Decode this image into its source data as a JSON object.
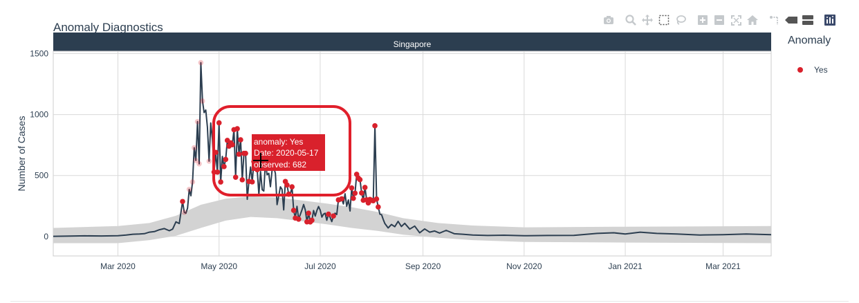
{
  "chart_data": {
    "type": "line",
    "title": "Anomaly Diagnostics",
    "facet_label": "Singapore",
    "ylabel": "Number of Cases",
    "xlabel": "",
    "x_range": [
      "2020-01-22",
      "2021-03-30"
    ],
    "ylim": [
      -160,
      1520
    ],
    "y_ticks": [
      0,
      500,
      1000,
      1500
    ],
    "x_ticks": [
      {
        "date": "2020-03-01",
        "label": "Mar 2020"
      },
      {
        "date": "2020-05-01",
        "label": "May 2020"
      },
      {
        "date": "2020-07-01",
        "label": "Jul 2020"
      },
      {
        "date": "2020-09-01",
        "label": "Sep 2020"
      },
      {
        "date": "2020-11-01",
        "label": "Nov 2020"
      },
      {
        "date": "2021-01-01",
        "label": "Jan 2021"
      },
      {
        "date": "2021-03-01",
        "label": "Mar 2021"
      }
    ],
    "grid": true,
    "series": [
      {
        "kind": "observed-line",
        "color": "#2c3e50",
        "points": [
          [
            "2020-01-22",
            1
          ],
          [
            "2020-02-01",
            3
          ],
          [
            "2020-02-10",
            5
          ],
          [
            "2020-02-20",
            4
          ],
          [
            "2020-03-01",
            6
          ],
          [
            "2020-03-06",
            12
          ],
          [
            "2020-03-10",
            18
          ],
          [
            "2020-03-14",
            20
          ],
          [
            "2020-03-17",
            23
          ],
          [
            "2020-03-20",
            35
          ],
          [
            "2020-03-23",
            40
          ],
          [
            "2020-03-26",
            55
          ],
          [
            "2020-03-29",
            65
          ],
          [
            "2020-04-01",
            47
          ],
          [
            "2020-04-03",
            60
          ],
          [
            "2020-04-05",
            120
          ],
          [
            "2020-04-07",
            106
          ],
          [
            "2020-04-09",
            287
          ],
          [
            "2020-04-10",
            198
          ],
          [
            "2020-04-11",
            191
          ],
          [
            "2020-04-12",
            233
          ],
          [
            "2020-04-13",
            386
          ],
          [
            "2020-04-14",
            334
          ],
          [
            "2020-04-15",
            447
          ],
          [
            "2020-04-16",
            728
          ],
          [
            "2020-04-17",
            623
          ],
          [
            "2020-04-18",
            942
          ],
          [
            "2020-04-19",
            596
          ],
          [
            "2020-04-20",
            1426
          ],
          [
            "2020-04-21",
            1111
          ],
          [
            "2020-04-22",
            1016
          ],
          [
            "2020-04-23",
            1037
          ],
          [
            "2020-04-24",
            897
          ],
          [
            "2020-04-25",
            618
          ],
          [
            "2020-04-26",
            931
          ],
          [
            "2020-04-27",
            799
          ],
          [
            "2020-04-28",
            528
          ],
          [
            "2020-04-29",
            690
          ],
          [
            "2020-04-30",
            528
          ],
          [
            "2020-05-01",
            932
          ],
          [
            "2020-05-02",
            447
          ],
          [
            "2020-05-03",
            657
          ],
          [
            "2020-05-04",
            573
          ],
          [
            "2020-05-05",
            632
          ],
          [
            "2020-05-06",
            788
          ],
          [
            "2020-05-07",
            741
          ],
          [
            "2020-05-08",
            768
          ],
          [
            "2020-05-09",
            753
          ],
          [
            "2020-05-10",
            876
          ],
          [
            "2020-05-11",
            486
          ],
          [
            "2020-05-12",
            884
          ],
          [
            "2020-05-13",
            675
          ],
          [
            "2020-05-14",
            793
          ],
          [
            "2020-05-15",
            465
          ],
          [
            "2020-05-16",
            682
          ],
          [
            "2020-05-17",
            682
          ],
          [
            "2020-05-18",
            305
          ],
          [
            "2020-05-19",
            451
          ],
          [
            "2020-05-20",
            570
          ],
          [
            "2020-05-21",
            448
          ],
          [
            "2020-05-22",
            614
          ],
          [
            "2020-05-23",
            642
          ],
          [
            "2020-05-24",
            548
          ],
          [
            "2020-05-25",
            344
          ],
          [
            "2020-05-26",
            533
          ],
          [
            "2020-05-27",
            383
          ],
          [
            "2020-05-28",
            373
          ],
          [
            "2020-05-29",
            611
          ],
          [
            "2020-05-30",
            506
          ],
          [
            "2020-05-31",
            518
          ],
          [
            "2020-06-01",
            408
          ],
          [
            "2020-06-02",
            544
          ],
          [
            "2020-06-03",
            569
          ],
          [
            "2020-06-04",
            517
          ],
          [
            "2020-06-05",
            261
          ],
          [
            "2020-06-06",
            331
          ],
          [
            "2020-06-07",
            407
          ],
          [
            "2020-06-08",
            386
          ],
          [
            "2020-06-09",
            218
          ],
          [
            "2020-06-10",
            451
          ],
          [
            "2020-06-11",
            422
          ],
          [
            "2020-06-12",
            347
          ],
          [
            "2020-06-13",
            347
          ],
          [
            "2020-06-14",
            407
          ],
          [
            "2020-06-15",
            214
          ],
          [
            "2020-06-16",
            151
          ],
          [
            "2020-06-17",
            247
          ],
          [
            "2020-06-18",
            142
          ],
          [
            "2020-06-19",
            180
          ],
          [
            "2020-06-20",
            218
          ],
          [
            "2020-06-21",
            262
          ],
          [
            "2020-06-22",
            218
          ],
          [
            "2020-06-23",
            120
          ],
          [
            "2020-06-24",
            191
          ],
          [
            "2020-06-25",
            119
          ],
          [
            "2020-06-26",
            133
          ],
          [
            "2020-06-27",
            213
          ],
          [
            "2020-06-28",
            167
          ],
          [
            "2020-06-29",
            213
          ],
          [
            "2020-06-30",
            246
          ],
          [
            "2020-07-01",
            215
          ],
          [
            "2020-07-02",
            159
          ],
          [
            "2020-07-03",
            183
          ],
          [
            "2020-07-04",
            191
          ],
          [
            "2020-07-05",
            133
          ],
          [
            "2020-07-06",
            183
          ],
          [
            "2020-07-07",
            157
          ],
          [
            "2020-07-08",
            122
          ],
          [
            "2020-07-09",
            168
          ],
          [
            "2020-07-10",
            191
          ],
          [
            "2020-07-11",
            180
          ],
          [
            "2020-07-12",
            300
          ],
          [
            "2020-07-13",
            288
          ],
          [
            "2020-07-14",
            309
          ],
          [
            "2020-07-15",
            267
          ],
          [
            "2020-07-16",
            350
          ],
          [
            "2020-07-17",
            247
          ],
          [
            "2020-07-18",
            300
          ],
          [
            "2020-07-19",
            209
          ],
          [
            "2020-07-20",
            398
          ],
          [
            "2020-07-21",
            313
          ],
          [
            "2020-07-22",
            355
          ],
          [
            "2020-07-23",
            510
          ],
          [
            "2020-07-24",
            479
          ],
          [
            "2020-07-25",
            466
          ],
          [
            "2020-07-26",
            357
          ],
          [
            "2020-07-27",
            297
          ],
          [
            "2020-07-28",
            402
          ],
          [
            "2020-07-29",
            301
          ],
          [
            "2020-07-30",
            275
          ],
          [
            "2020-07-31",
            304
          ],
          [
            "2020-08-01",
            296
          ],
          [
            "2020-08-02",
            293
          ],
          [
            "2020-08-03",
            908
          ],
          [
            "2020-08-04",
            307
          ],
          [
            "2020-08-05",
            242
          ],
          [
            "2020-08-06",
            182
          ],
          [
            "2020-08-07",
            179
          ],
          [
            "2020-08-08",
            141
          ],
          [
            "2020-08-09",
            107
          ],
          [
            "2020-08-11",
            70
          ],
          [
            "2020-08-13",
            98
          ],
          [
            "2020-08-15",
            80
          ],
          [
            "2020-08-17",
            124
          ],
          [
            "2020-08-19",
            82
          ],
          [
            "2020-08-21",
            108
          ],
          [
            "2020-08-24",
            60
          ],
          [
            "2020-08-27",
            85
          ],
          [
            "2020-08-30",
            30
          ],
          [
            "2020-09-02",
            62
          ],
          [
            "2020-09-05",
            35
          ],
          [
            "2020-09-08",
            45
          ],
          [
            "2020-09-11",
            28
          ],
          [
            "2020-09-15",
            50
          ],
          [
            "2020-09-20",
            22
          ],
          [
            "2020-09-25",
            18
          ],
          [
            "2020-10-01",
            12
          ],
          [
            "2020-10-10",
            8
          ],
          [
            "2020-10-20",
            10
          ],
          [
            "2020-11-01",
            6
          ],
          [
            "2020-11-15",
            8
          ],
          [
            "2020-12-01",
            9
          ],
          [
            "2020-12-15",
            25
          ],
          [
            "2020-12-25",
            30
          ],
          [
            "2021-01-01",
            20
          ],
          [
            "2021-01-10",
            35
          ],
          [
            "2021-01-20",
            25
          ],
          [
            "2021-02-01",
            20
          ],
          [
            "2021-02-15",
            12
          ],
          [
            "2021-03-01",
            15
          ],
          [
            "2021-03-15",
            20
          ],
          [
            "2021-03-30",
            15
          ]
        ]
      },
      {
        "kind": "recomposed-band",
        "color": "#d3d3d3",
        "upper": [
          [
            "2020-01-22",
            70
          ],
          [
            "2020-03-01",
            85
          ],
          [
            "2020-03-20",
            110
          ],
          [
            "2020-04-05",
            170
          ],
          [
            "2020-04-20",
            260
          ],
          [
            "2020-05-05",
            310
          ],
          [
            "2020-05-20",
            330
          ],
          [
            "2020-06-05",
            320
          ],
          [
            "2020-06-20",
            295
          ],
          [
            "2020-07-05",
            270
          ],
          [
            "2020-07-20",
            240
          ],
          [
            "2020-08-05",
            200
          ],
          [
            "2020-08-20",
            150
          ],
          [
            "2020-09-10",
            110
          ],
          [
            "2020-10-01",
            90
          ],
          [
            "2020-11-01",
            75
          ],
          [
            "2021-01-01",
            80
          ],
          [
            "2021-03-30",
            85
          ]
        ],
        "lower": [
          [
            "2020-01-22",
            -55
          ],
          [
            "2020-03-01",
            -55
          ],
          [
            "2020-03-20",
            -30
          ],
          [
            "2020-04-05",
            5
          ],
          [
            "2020-04-20",
            70
          ],
          [
            "2020-05-05",
            130
          ],
          [
            "2020-05-20",
            160
          ],
          [
            "2020-06-05",
            150
          ],
          [
            "2020-06-20",
            125
          ],
          [
            "2020-07-05",
            100
          ],
          [
            "2020-07-20",
            70
          ],
          [
            "2020-08-05",
            45
          ],
          [
            "2020-08-20",
            15
          ],
          [
            "2020-09-10",
            -10
          ],
          [
            "2020-10-01",
            -30
          ],
          [
            "2020-11-01",
            -45
          ],
          [
            "2021-01-01",
            -50
          ],
          [
            "2021-03-30",
            -55
          ]
        ]
      }
    ],
    "anomaly_dates_observed": [
      "2020-04-09",
      "2020-04-10",
      "2020-04-13",
      "2020-04-15",
      "2020-04-16",
      "2020-04-17",
      "2020-04-18",
      "2020-04-19",
      "2020-04-20",
      "2020-04-21",
      "2020-04-25",
      "2020-04-28",
      "2020-04-29",
      "2020-04-30",
      "2020-05-01",
      "2020-05-02",
      "2020-05-04",
      "2020-05-05",
      "2020-05-06",
      "2020-05-07",
      "2020-05-08",
      "2020-05-09",
      "2020-05-10",
      "2020-05-11",
      "2020-05-12",
      "2020-05-13",
      "2020-05-14",
      "2020-05-15",
      "2020-05-16",
      "2020-05-17",
      "2020-05-19",
      "2020-05-21",
      "2020-05-22",
      "2020-05-23",
      "2020-05-24",
      "2020-06-10",
      "2020-06-11",
      "2020-06-12",
      "2020-06-14",
      "2020-06-15",
      "2020-06-16",
      "2020-06-18",
      "2020-06-23",
      "2020-06-24",
      "2020-06-25",
      "2020-06-26",
      "2020-07-06",
      "2020-07-09",
      "2020-07-12",
      "2020-07-14",
      "2020-07-20",
      "2020-07-21",
      "2020-07-22",
      "2020-07-23",
      "2020-07-24",
      "2020-07-25",
      "2020-07-26",
      "2020-07-27",
      "2020-07-28",
      "2020-07-29",
      "2020-07-30",
      "2020-07-31",
      "2020-08-01",
      "2020-08-02",
      "2020-08-03",
      "2020-08-04",
      "2020-08-05"
    ],
    "anomaly_color": "#d9212c",
    "tooltip": {
      "date": "2020-05-17",
      "value": 682,
      "lines": [
        "anomaly: Yes",
        "Date: 2020-05-17",
        "observed:  682"
      ]
    },
    "legend": {
      "title": "Anomaly",
      "placement": "right",
      "items": [
        {
          "label": "Yes",
          "color": "#d9212c"
        }
      ]
    }
  },
  "toolbar": {
    "icons": [
      "camera-icon",
      "zoom-icon",
      "pan-icon",
      "box-select-icon",
      "lasso-icon",
      "zoom-in-icon",
      "zoom-out-icon",
      "autoscale-icon",
      "reset-axes-icon",
      "spike-lines-icon",
      "hover-closest-icon",
      "hover-compare-icon",
      "plotly-logo-icon"
    ]
  }
}
